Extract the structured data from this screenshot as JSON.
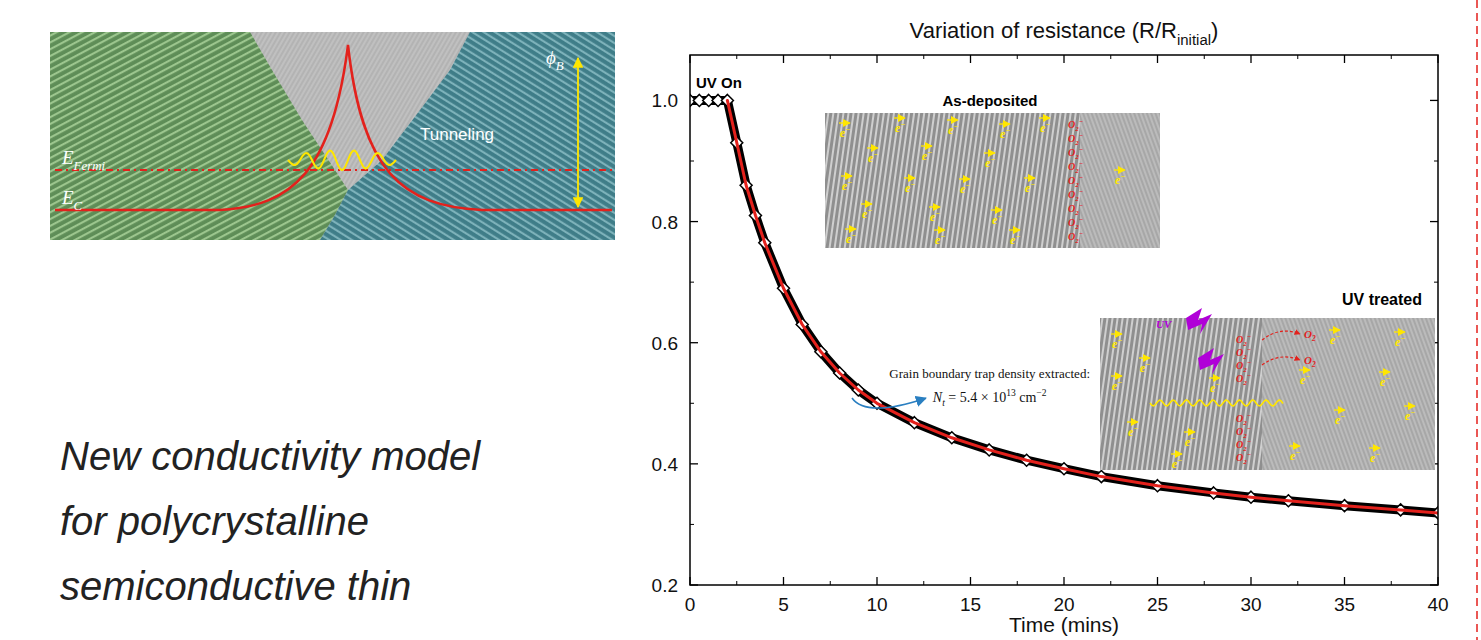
{
  "chart_data": {
    "type": "line",
    "title": [
      {
        "text": "Variation of resistance (R/R"
      },
      {
        "sub": "initial"
      },
      {
        "text": ")"
      }
    ],
    "x_label": "Time (mins)",
    "xlim": [
      0,
      40
    ],
    "xticks": [
      0,
      5,
      10,
      15,
      20,
      25,
      30,
      35,
      40
    ],
    "ylim": [
      0.2,
      1.075
    ],
    "yticks": [
      0.2,
      0.4,
      0.6,
      0.8,
      {
        "value": 1,
        "label": "1.0"
      }
    ],
    "series": [
      {
        "color": "#000000",
        "marker": "diamond",
        "line_style": "solid",
        "x": [
          0,
          0.5,
          1,
          1.5,
          2,
          2.5,
          3,
          3.5,
          4,
          5,
          6,
          7,
          8,
          9,
          10,
          12,
          14,
          16,
          18,
          20,
          22,
          25,
          28,
          30,
          32,
          35,
          38,
          40
        ],
        "values": [
          1,
          1,
          1,
          1,
          1,
          0.93,
          0.86,
          0.81,
          0.765,
          0.69,
          0.63,
          0.585,
          0.55,
          0.522,
          0.5,
          0.468,
          0.443,
          0.423,
          0.406,
          0.392,
          0.379,
          0.364,
          0.352,
          0.345,
          0.339,
          0.331,
          0.324,
          0.319
        ]
      },
      {
        "color": "#e3211c",
        "marker": "none",
        "line_style": "solid",
        "x": [
          2,
          2.5,
          3,
          3.5,
          4,
          5,
          6,
          7,
          8,
          9,
          10,
          12,
          14,
          16,
          18,
          20,
          22,
          25,
          28,
          30,
          32,
          35,
          38,
          40
        ],
        "values": [
          1,
          0.93,
          0.86,
          0.81,
          0.765,
          0.69,
          0.63,
          0.585,
          0.55,
          0.522,
          0.5,
          0.468,
          0.443,
          0.423,
          0.406,
          0.392,
          0.379,
          0.364,
          0.352,
          0.345,
          0.339,
          0.331,
          0.324,
          0.319
        ]
      }
    ],
    "annotations": [
      {
        "text": "UV On"
      },
      {
        "text": "Grain boundary trap density extracted:",
        "formula": [
          {
            "text": "N"
          },
          {
            "sub": "t"
          },
          {
            "text": " = 5.4 × 10"
          },
          {
            "sup": "13"
          },
          {
            "text": " cm"
          },
          {
            "sup": "−2"
          }
        ]
      }
    ],
    "insets": [
      {
        "title": "As-deposited",
        "electron": [
          {
            "text": "e"
          },
          {
            "sup": "−"
          }
        ],
        "ion": [
          {
            "text": "O"
          },
          {
            "sub": "2"
          },
          {
            "sup": "−"
          }
        ]
      },
      {
        "title": "UV treated",
        "uv": "UV",
        "electron": [
          {
            "text": "e"
          },
          {
            "sup": "−"
          }
        ],
        "ion": [
          {
            "text": "O"
          },
          {
            "sub": "2"
          },
          {
            "sup": "−"
          }
        ],
        "released": [
          {
            "text": "O"
          },
          {
            "sub": "2"
          }
        ]
      }
    ]
  },
  "diagram": {
    "fermi_level": [
      {
        "text": "E"
      },
      {
        "sub": "Fermi"
      }
    ],
    "conduction_band": [
      {
        "text": "E"
      },
      {
        "sub": "C"
      }
    ],
    "tunneling": "Tunneling",
    "barrier": [
      {
        "text": "ϕ"
      },
      {
        "sub": "B"
      }
    ]
  },
  "caption": [
    "New conductivity model",
    "for polycrystalline",
    "semiconductive thin"
  ]
}
